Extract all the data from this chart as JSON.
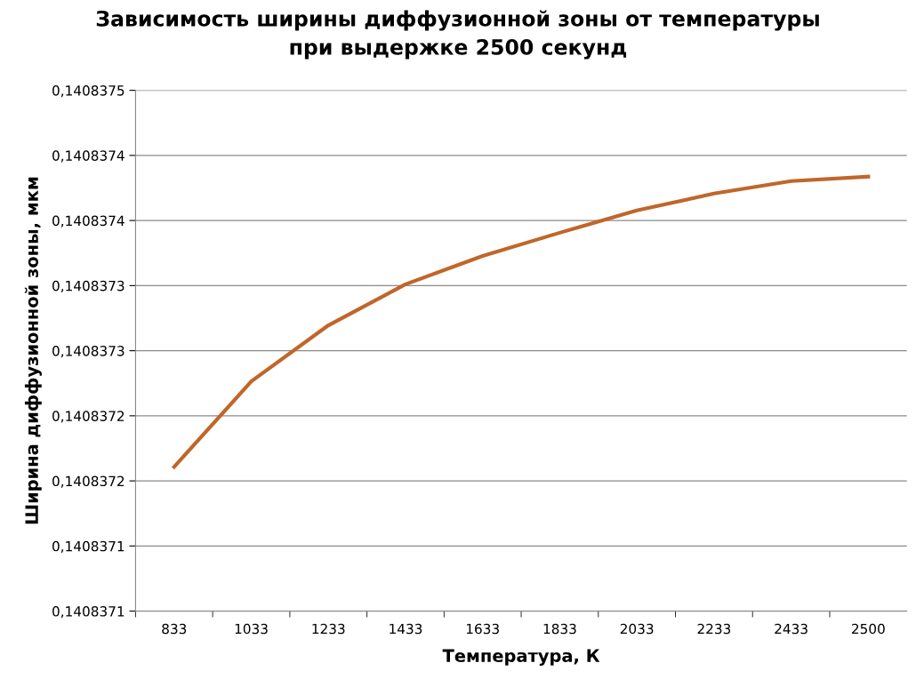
{
  "chart_data": {
    "type": "line",
    "title": "Зависимость ширины диффузионной зоны от температуры\nпри выдержке 2500 секунд",
    "xlabel": "Температура, К",
    "ylabel": "Ширина диффузионной зоны, мкм",
    "categories": [
      "833",
      "1033",
      "1233",
      "1433",
      "1633",
      "1833",
      "2033",
      "2233",
      "2433",
      "2500"
    ],
    "series": [
      {
        "color": "#c0662a",
        "values": [
          0.1408371858,
          0.1408372514,
          0.1408372945,
          0.140837326,
          0.1408373478,
          0.1408373656,
          0.1408373827,
          0.1408373957,
          0.1408374053,
          0.1408374087
        ]
      }
    ],
    "ylim": [
      0.140837075,
      0.140837475
    ],
    "yticks": [
      {
        "value": 0.140837075,
        "label": "0,1408371"
      },
      {
        "value": 0.140837125,
        "label": "0,1408371"
      },
      {
        "value": 0.140837175,
        "label": "0,1408372"
      },
      {
        "value": 0.140837225,
        "label": "0,1408372"
      },
      {
        "value": 0.140837275,
        "label": "0,1408373"
      },
      {
        "value": 0.140837325,
        "label": "0,1408373"
      },
      {
        "value": 0.140837375,
        "label": "0,1408374"
      },
      {
        "value": 0.140837425,
        "label": "0,1408374"
      },
      {
        "value": 0.140837475,
        "label": "0,1408375"
      }
    ],
    "grid": "y",
    "marker": "none",
    "line_style": "solid",
    "legend": false
  }
}
